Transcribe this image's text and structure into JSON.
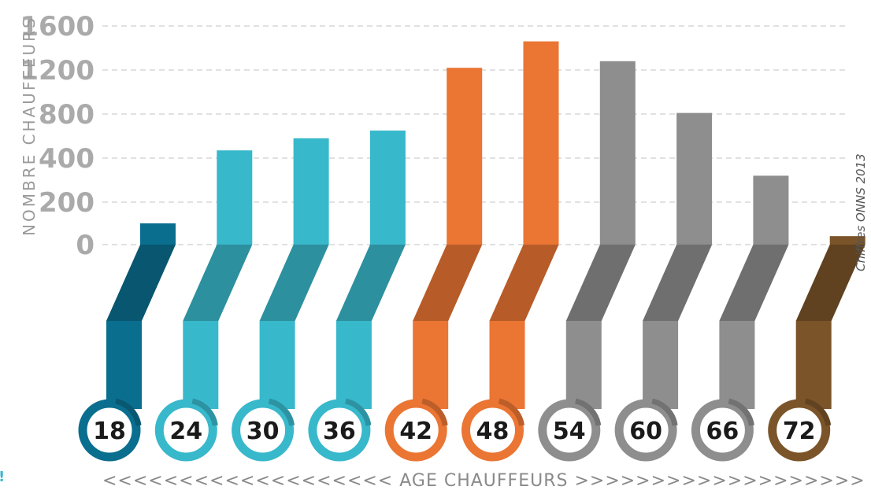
{
  "chart_data": {
    "type": "bar",
    "title": "",
    "ylabel": "NOMBRE CHAUFFEURS",
    "xlabel": "<<<<<<<<<<<<<<<<<<< AGE CHAUFFEURS >>>>>>>>>>>>>>>>>>>",
    "source": "Chiffres ONNS 2013",
    "y_ticks": [
      0,
      200,
      400,
      800,
      1200,
      1600
    ],
    "ylim": [
      0,
      1600
    ],
    "grid": "dashed-horizontal",
    "categories": [
      "18",
      "24",
      "30",
      "36",
      "42",
      "48",
      "54",
      "60",
      "66",
      "72"
    ],
    "values": [
      100,
      470,
      580,
      650,
      1220,
      1460,
      1280,
      810,
      320,
      40
    ],
    "colors": [
      "#0a6e8f",
      "#38b8cb",
      "#38b8cb",
      "#38b8cb",
      "#eb7533",
      "#eb7533",
      "#8e8e8e",
      "#8e8e8e",
      "#8e8e8e",
      "#7b5429"
    ],
    "color_groups": {
      "young": "#0a6e8f",
      "teal": "#38b8cb",
      "orange": "#eb7533",
      "gray": "#8e8e8e",
      "brown": "#7b5429"
    }
  },
  "margin_text": "!"
}
